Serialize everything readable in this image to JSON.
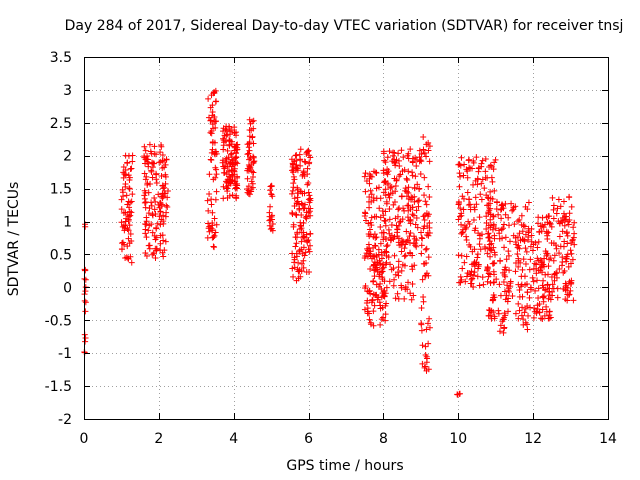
{
  "chart_data": {
    "type": "scatter",
    "title": "Day 284 of 2017, Sidereal Day-to-day VTEC variation (SDTVAR) for receiver tnsj",
    "xlabel": "GPS time / hours",
    "ylabel": "SDTVAR / TECUs",
    "xlim": [
      0,
      14
    ],
    "ylim": [
      -2,
      3.5
    ],
    "xticks": [
      0,
      2,
      4,
      6,
      8,
      10,
      12,
      14
    ],
    "yticks": [
      -2,
      -1.5,
      -1,
      -0.5,
      0,
      0.5,
      1,
      1.5,
      2,
      2.5,
      3,
      3.5
    ],
    "xtick_labels": [
      "0",
      "2",
      "4",
      "6",
      "8",
      "10",
      "12",
      "14"
    ],
    "ytick_labels": [
      "-2",
      "-1.5",
      "-1",
      "-0.5",
      "0",
      "0.5",
      "1",
      "1.5",
      "2",
      "2.5",
      "3",
      "3.5"
    ],
    "grid": true,
    "marker": "+",
    "color": "#ff0000",
    "clusters": [
      {
        "x_range": [
          0.0,
          0.05
        ],
        "y_center": 0.0,
        "y_spread": 1.0,
        "n": 18
      },
      {
        "x_range": [
          1.0,
          1.3
        ],
        "y_center": 1.2,
        "y_spread": 0.85,
        "n": 70
      },
      {
        "x_range": [
          1.6,
          2.25
        ],
        "y_center": 1.3,
        "y_spread": 0.9,
        "n": 140
      },
      {
        "x_range": [
          3.3,
          3.55
        ],
        "y_center": 1.8,
        "y_spread": 1.2,
        "n": 70
      },
      {
        "x_range": [
          3.7,
          4.1
        ],
        "y_center": 1.9,
        "y_spread": 0.55,
        "n": 120
      },
      {
        "x_range": [
          4.35,
          4.55
        ],
        "y_center": 2.0,
        "y_spread": 0.6,
        "n": 50
      },
      {
        "x_range": [
          4.95,
          5.05
        ],
        "y_center": 1.2,
        "y_spread": 0.35,
        "n": 20
      },
      {
        "x_range": [
          5.55,
          6.05
        ],
        "y_center": 1.1,
        "y_spread": 1.0,
        "n": 150
      },
      {
        "x_range": [
          7.5,
          8.1
        ],
        "y_center": 0.6,
        "y_spread": 1.2,
        "n": 140
      },
      {
        "x_range": [
          8.0,
          9.0
        ],
        "y_center": 1.3,
        "y_spread": 0.8,
        "n": 150
      },
      {
        "x_range": [
          7.7,
          8.9
        ],
        "y_center": 0.3,
        "y_spread": 0.5,
        "n": 90
      },
      {
        "x_range": [
          9.0,
          9.25
        ],
        "y_center": 0.5,
        "y_spread": 1.8,
        "n": 70
      },
      {
        "x_range": [
          9.95,
          10.05
        ],
        "y_center": -1.62,
        "y_spread": 0.02,
        "n": 4
      },
      {
        "x_range": [
          10.0,
          11.0
        ],
        "y_center": 1.0,
        "y_spread": 1.0,
        "n": 170
      },
      {
        "x_range": [
          10.8,
          12.0
        ],
        "y_center": 0.3,
        "y_spread": 1.0,
        "n": 200
      },
      {
        "x_range": [
          12.0,
          12.5
        ],
        "y_center": 0.3,
        "y_spread": 0.8,
        "n": 100
      },
      {
        "x_range": [
          12.5,
          13.1
        ],
        "y_center": 0.6,
        "y_spread": 0.8,
        "n": 100
      }
    ]
  }
}
